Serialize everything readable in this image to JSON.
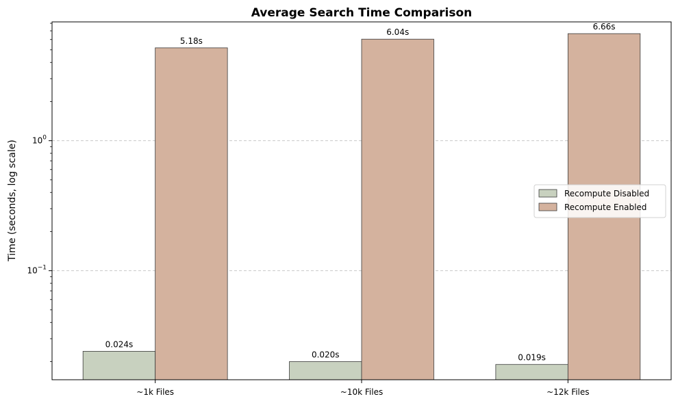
{
  "chart_data": {
    "type": "bar",
    "title": "Average Search Time Comparison",
    "xlabel": "",
    "ylabel": "Time (seconds, log scale)",
    "yscale": "log",
    "ylim": [
      0.0145,
      8.2
    ],
    "yticks": [
      {
        "value": 1,
        "base": "10",
        "exp": "0"
      },
      {
        "value": 0.1,
        "base": "10",
        "exp": "−1"
      }
    ],
    "grid": "y-major-dashed",
    "legend_position": "center-right",
    "categories": [
      "~1k Files",
      "~10k Files",
      "~12k Files"
    ],
    "series": [
      {
        "name": "Recompute Disabled",
        "color": "#c8d1bf",
        "values": [
          0.024,
          0.02,
          0.019
        ],
        "labels": [
          "0.024s",
          "0.020s",
          "0.019s"
        ]
      },
      {
        "name": "Recompute Enabled",
        "color": "#d4b29e",
        "values": [
          5.18,
          6.04,
          6.66
        ],
        "labels": [
          "5.18s",
          "6.04s",
          "6.66s"
        ]
      }
    ]
  }
}
